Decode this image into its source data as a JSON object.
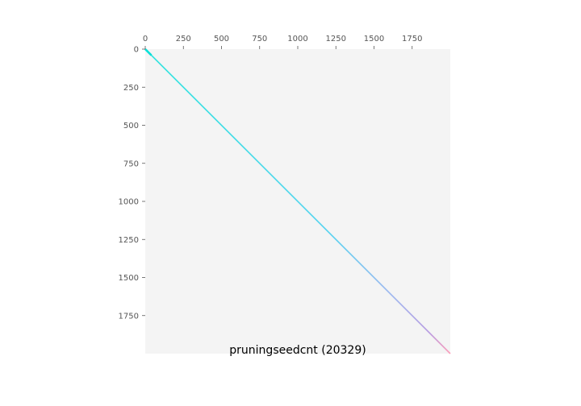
{
  "chart_data": {
    "type": "heatmap",
    "title": "pruningseedcnt (20329)",
    "xlabel": "",
    "ylabel": "",
    "xlim": [
      0,
      2000
    ],
    "ylim": [
      0,
      2000
    ],
    "y_inverted": true,
    "x_axis_position": "top",
    "grid": false,
    "background_color": "#f4f4f4",
    "xticks": [
      0,
      250,
      500,
      750,
      1000,
      1250,
      1500,
      1750
    ],
    "yticks": [
      0,
      250,
      500,
      750,
      1000,
      1250,
      1500,
      1750
    ],
    "diagonal": {
      "from": [
        0,
        0
      ],
      "to": [
        2000,
        2000
      ],
      "color_stops": [
        {
          "at": 0,
          "color": "#00e0d8"
        },
        {
          "at": 0.6,
          "color": "#33ccee"
        },
        {
          "at": 0.8,
          "color": "#88aaee"
        },
        {
          "at": 0.93,
          "color": "#aa88dd"
        },
        {
          "at": 1,
          "color": "#ff88aa"
        }
      ]
    }
  }
}
